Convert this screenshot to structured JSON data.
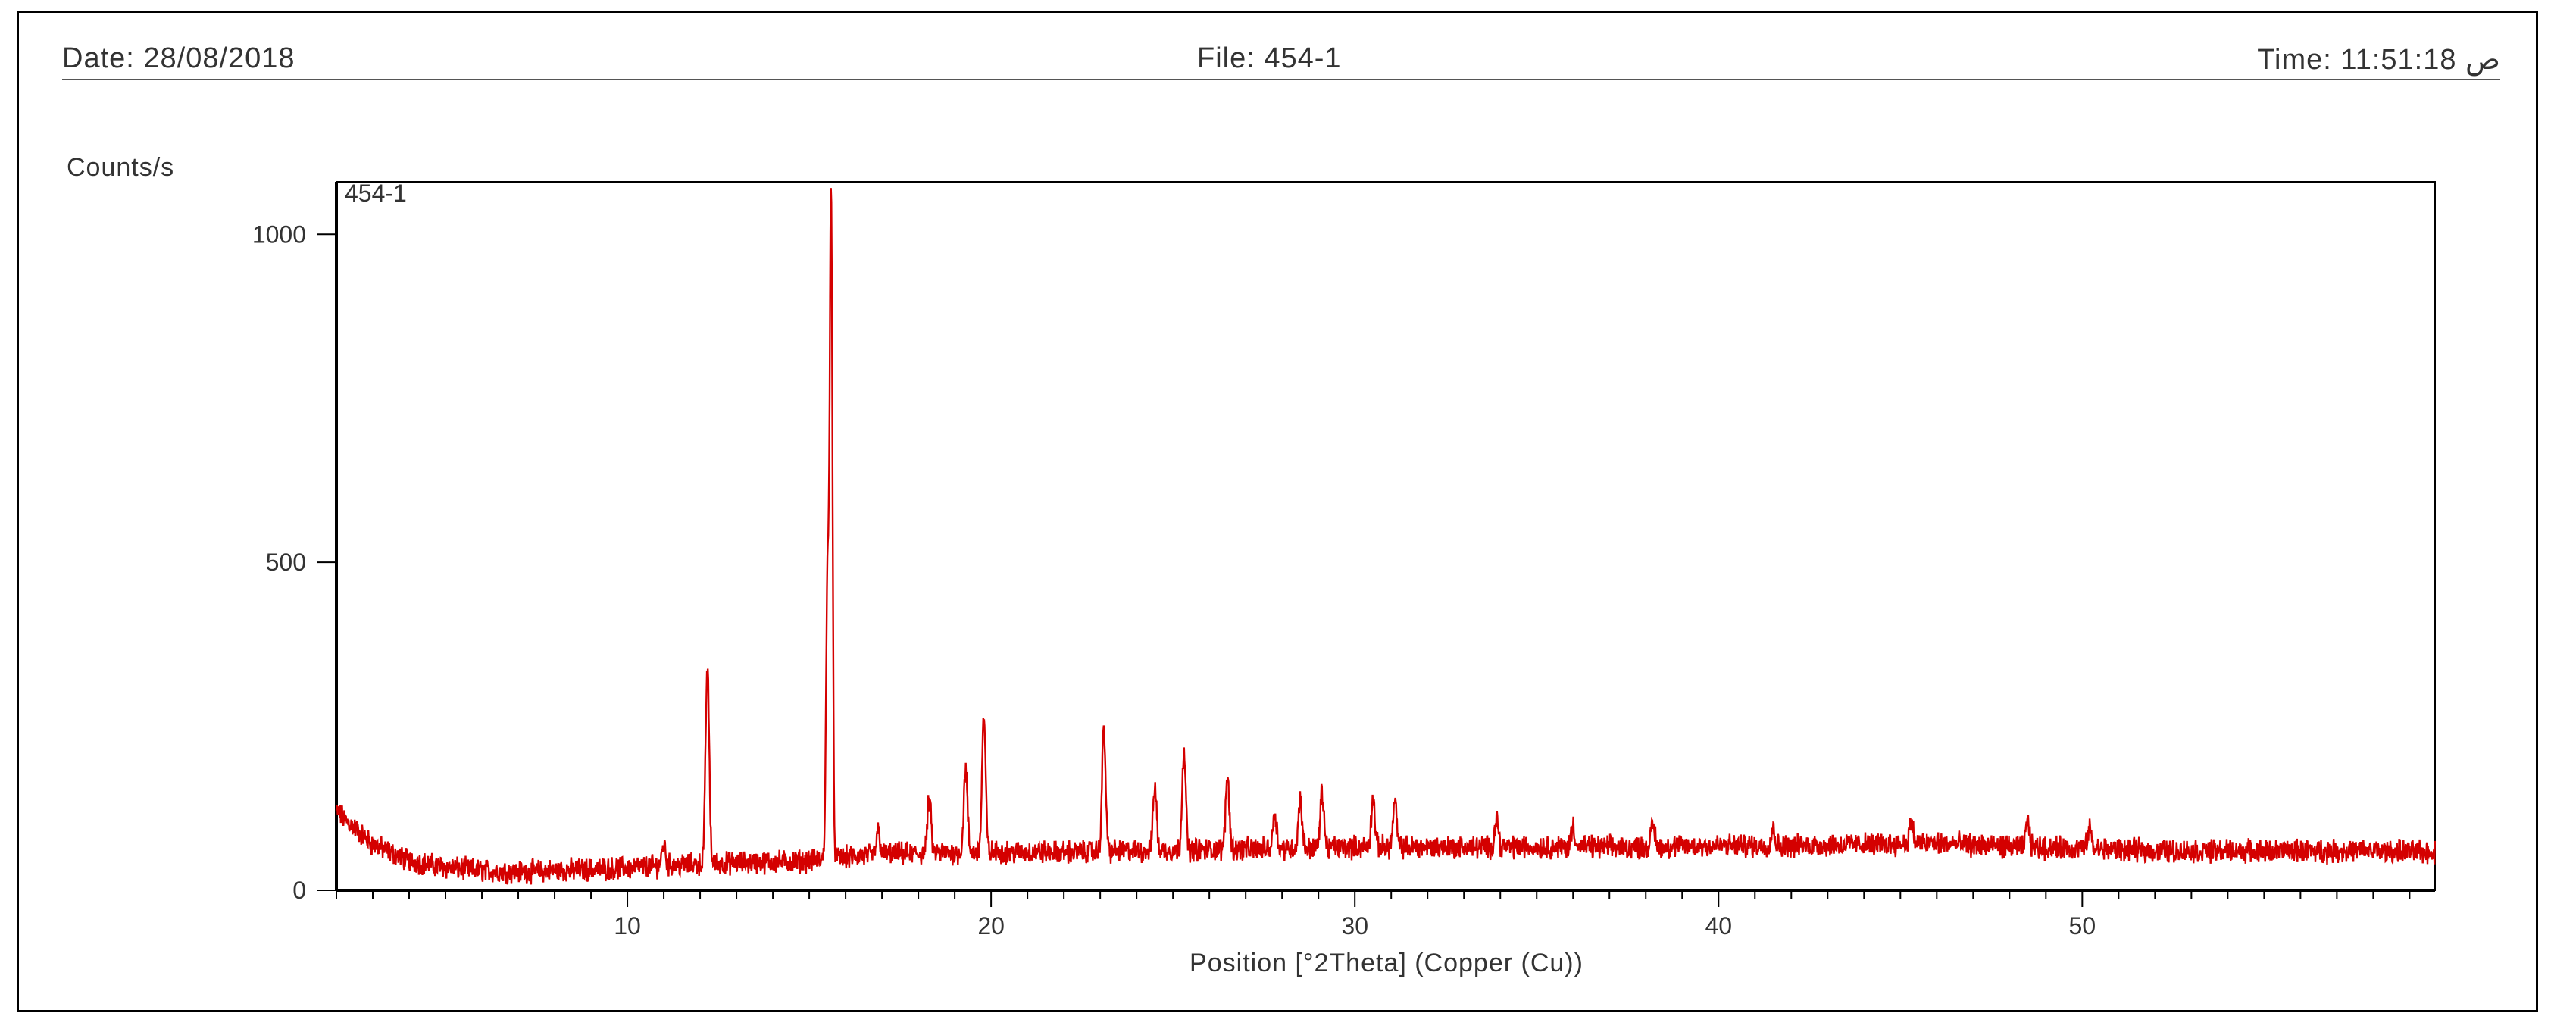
{
  "header": {
    "date": "Date: 28/08/2018",
    "file": "File: 454-1",
    "time": "Time: 11:51:18 ص"
  },
  "chart_data": {
    "type": "line",
    "sample_label": "454-1",
    "xlabel": "Position [°2Theta] (Copper (Cu))",
    "ylabel": "Counts/s",
    "xlim": [
      2,
      59.7
    ],
    "ylim": [
      0,
      1080
    ],
    "xticks": [
      10,
      20,
      30,
      40,
      50
    ],
    "yticks": [
      0,
      500,
      1000
    ],
    "grid": false,
    "line_color": "#d40000",
    "background": [
      [
        2,
        120
      ],
      [
        3,
        70
      ],
      [
        4,
        45
      ],
      [
        5,
        35
      ],
      [
        6,
        30
      ],
      [
        7,
        28
      ],
      [
        8,
        30
      ],
      [
        9,
        32
      ],
      [
        10,
        34
      ],
      [
        11,
        38
      ],
      [
        12,
        40
      ],
      [
        13,
        42
      ],
      [
        14,
        43
      ],
      [
        15,
        45
      ],
      [
        16,
        50
      ],
      [
        17,
        55
      ],
      [
        18,
        56
      ],
      [
        20,
        58
      ],
      [
        22,
        58
      ],
      [
        24,
        60
      ],
      [
        26,
        62
      ],
      [
        28,
        64
      ],
      [
        30,
        66
      ],
      [
        32,
        66
      ],
      [
        34,
        66
      ],
      [
        36,
        66
      ],
      [
        38,
        66
      ],
      [
        40,
        68
      ],
      [
        42,
        68
      ],
      [
        44,
        70
      ],
      [
        46,
        72
      ],
      [
        48,
        66
      ],
      [
        50,
        64
      ],
      [
        52,
        60
      ],
      [
        54,
        60
      ],
      [
        56,
        60
      ],
      [
        58,
        60
      ],
      [
        59.7,
        58
      ]
    ],
    "peaks": [
      {
        "x": 11.0,
        "y": 70
      },
      {
        "x": 12.2,
        "y": 340
      },
      {
        "x": 15.6,
        "y": 1060
      },
      {
        "x": 15.5,
        "y": 460
      },
      {
        "x": 16.9,
        "y": 90
      },
      {
        "x": 18.3,
        "y": 140
      },
      {
        "x": 19.3,
        "y": 185
      },
      {
        "x": 19.8,
        "y": 265
      },
      {
        "x": 23.1,
        "y": 245
      },
      {
        "x": 24.5,
        "y": 160
      },
      {
        "x": 25.3,
        "y": 215
      },
      {
        "x": 26.5,
        "y": 175
      },
      {
        "x": 27.8,
        "y": 120
      },
      {
        "x": 28.5,
        "y": 140
      },
      {
        "x": 29.1,
        "y": 150
      },
      {
        "x": 30.5,
        "y": 140
      },
      {
        "x": 31.1,
        "y": 135
      },
      {
        "x": 33.9,
        "y": 110
      },
      {
        "x": 36.0,
        "y": 100
      },
      {
        "x": 38.2,
        "y": 100
      },
      {
        "x": 41.5,
        "y": 95
      },
      {
        "x": 45.3,
        "y": 105
      },
      {
        "x": 48.5,
        "y": 105
      },
      {
        "x": 50.2,
        "y": 95
      }
    ]
  }
}
